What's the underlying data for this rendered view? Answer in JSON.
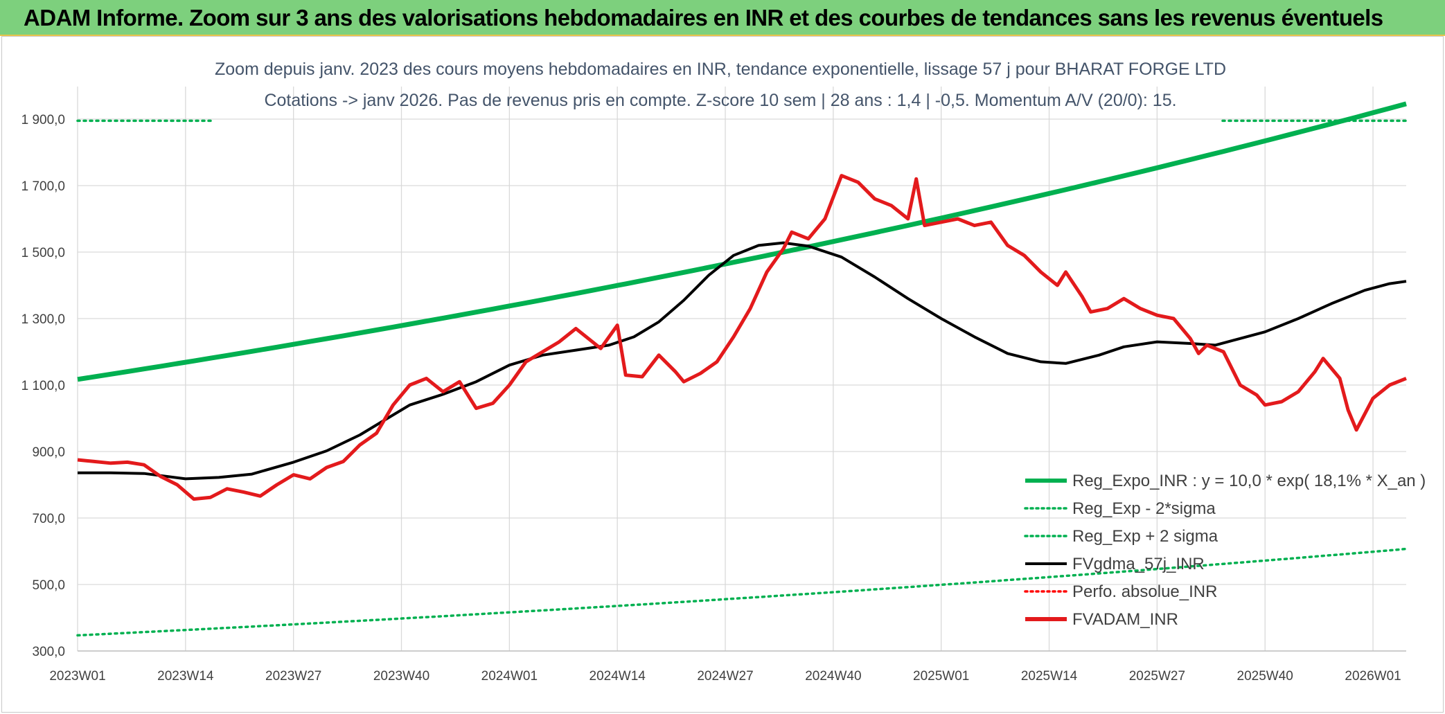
{
  "banner": {
    "title": "ADAM Informe. Zoom sur 3 ans des valorisations hebdomadaires en INR et des courbes de tendances sans les revenus éventuels"
  },
  "colors": {
    "banner_bg": "#7dd07d",
    "green": "#00b050",
    "black": "#000000",
    "red": "#e31a1c",
    "dotted_red": "#ff0000"
  },
  "chart_data": {
    "type": "line",
    "title": "Zoom depuis janv. 2023 des cours moyens hebdomadaires en INR, tendance exponentielle, lissage 57 j pour BHARAT FORGE LTD",
    "subtitle": "Cotations -> janv 2026. Pas de revenus pris en compte. Z-score 10 sem | 28 ans : 1,4 | -0,5. Momentum A/V (20/0): 15.",
    "ylim": [
      300,
      1900
    ],
    "yticks": [
      "300,0",
      "500,0",
      "700,0",
      "900,0",
      "1 100,0",
      "1 300,0",
      "1 500,0",
      "1 700,0",
      "1 900,0"
    ],
    "ytick_values": [
      300,
      500,
      700,
      900,
      1100,
      1300,
      1500,
      1700,
      1900
    ],
    "xticks": [
      "2023W01",
      "2023W14",
      "2023W27",
      "2023W40",
      "2024W01",
      "2024W14",
      "2024W27",
      "2024W40",
      "2025W01",
      "2025W14",
      "2025W27",
      "2025W40",
      "2026W01"
    ],
    "xtick_weeks": [
      0,
      13,
      26,
      39,
      52,
      65,
      78,
      91,
      104,
      117,
      130,
      143,
      156
    ],
    "n_weeks": 160,
    "grid": true,
    "legend_position": "bottom-right",
    "legend": [
      {
        "label": "Reg_Expo_INR : y = 10,0 * exp( 18,1% *  X_an )",
        "color": "#00b050",
        "style": "solid-thick"
      },
      {
        "label": "Reg_Exp - 2*sigma",
        "color": "#00b050",
        "style": "dotted"
      },
      {
        "label": "Reg_Exp + 2 sigma",
        "color": "#00b050",
        "style": "dotted"
      },
      {
        "label": "FVgdma_57j_INR",
        "color": "#000000",
        "style": "solid"
      },
      {
        "label": "Perfo. absolue_INR",
        "color": "#ff0000",
        "style": "dotted"
      },
      {
        "label": "FVADAM_INR",
        "color": "#e31a1c",
        "style": "solid-thick"
      }
    ],
    "series": [
      {
        "name": "Reg_Expo_INR",
        "start": 1117,
        "end": 1946
      },
      {
        "name": "Reg_Exp - 2*sigma",
        "start": 347,
        "end": 607
      },
      {
        "name": "Reg_Exp + 2 sigma",
        "start": 1895,
        "end": 1895,
        "note_visible_segments": true
      },
      {
        "name": "FVgdma_57j_INR",
        "points": [
          [
            0,
            836
          ],
          [
            4,
            836
          ],
          [
            8,
            834
          ],
          [
            13,
            818
          ],
          [
            17,
            822
          ],
          [
            21,
            832
          ],
          [
            26,
            868
          ],
          [
            30,
            902
          ],
          [
            34,
            950
          ],
          [
            37,
            995
          ],
          [
            40,
            1040
          ],
          [
            44,
            1072
          ],
          [
            48,
            1110
          ],
          [
            52,
            1160
          ],
          [
            56,
            1190
          ],
          [
            60,
            1205
          ],
          [
            64,
            1220
          ],
          [
            67,
            1245
          ],
          [
            70,
            1290
          ],
          [
            73,
            1355
          ],
          [
            76,
            1430
          ],
          [
            79,
            1490
          ],
          [
            82,
            1520
          ],
          [
            85,
            1528
          ],
          [
            88,
            1518
          ],
          [
            92,
            1485
          ],
          [
            96,
            1425
          ],
          [
            100,
            1360
          ],
          [
            104,
            1300
          ],
          [
            108,
            1245
          ],
          [
            112,
            1195
          ],
          [
            116,
            1170
          ],
          [
            119,
            1165
          ],
          [
            123,
            1190
          ],
          [
            126,
            1215
          ],
          [
            130,
            1230
          ],
          [
            134,
            1225
          ],
          [
            137,
            1220
          ],
          [
            140,
            1240
          ],
          [
            143,
            1260
          ],
          [
            147,
            1300
          ],
          [
            151,
            1345
          ],
          [
            155,
            1385
          ],
          [
            158,
            1405
          ],
          [
            160,
            1412
          ]
        ]
      },
      {
        "name": "FVADAM_INR",
        "points": [
          [
            0,
            875
          ],
          [
            2,
            870
          ],
          [
            4,
            865
          ],
          [
            6,
            868
          ],
          [
            8,
            860
          ],
          [
            10,
            825
          ],
          [
            12,
            800
          ],
          [
            14,
            757
          ],
          [
            16,
            762
          ],
          [
            18,
            788
          ],
          [
            20,
            778
          ],
          [
            22,
            766
          ],
          [
            24,
            800
          ],
          [
            26,
            830
          ],
          [
            28,
            818
          ],
          [
            30,
            852
          ],
          [
            32,
            870
          ],
          [
            34,
            920
          ],
          [
            36,
            955
          ],
          [
            38,
            1040
          ],
          [
            40,
            1100
          ],
          [
            42,
            1120
          ],
          [
            44,
            1080
          ],
          [
            46,
            1110
          ],
          [
            48,
            1030
          ],
          [
            50,
            1045
          ],
          [
            52,
            1100
          ],
          [
            54,
            1170
          ],
          [
            56,
            1200
          ],
          [
            58,
            1230
          ],
          [
            60,
            1270
          ],
          [
            62,
            1230
          ],
          [
            63,
            1210
          ],
          [
            65,
            1280
          ],
          [
            66,
            1130
          ],
          [
            68,
            1125
          ],
          [
            70,
            1190
          ],
          [
            72,
            1140
          ],
          [
            73,
            1110
          ],
          [
            75,
            1135
          ],
          [
            77,
            1170
          ],
          [
            79,
            1245
          ],
          [
            81,
            1330
          ],
          [
            83,
            1440
          ],
          [
            85,
            1510
          ],
          [
            86,
            1560
          ],
          [
            88,
            1540
          ],
          [
            90,
            1600
          ],
          [
            92,
            1730
          ],
          [
            94,
            1710
          ],
          [
            96,
            1660
          ],
          [
            98,
            1640
          ],
          [
            100,
            1600
          ],
          [
            101,
            1720
          ],
          [
            102,
            1580
          ],
          [
            104,
            1590
          ],
          [
            106,
            1600
          ],
          [
            108,
            1580
          ],
          [
            110,
            1590
          ],
          [
            112,
            1520
          ],
          [
            114,
            1490
          ],
          [
            116,
            1440
          ],
          [
            118,
            1400
          ],
          [
            119,
            1440
          ],
          [
            121,
            1365
          ],
          [
            122,
            1320
          ],
          [
            124,
            1330
          ],
          [
            126,
            1360
          ],
          [
            128,
            1330
          ],
          [
            130,
            1310
          ],
          [
            132,
            1300
          ],
          [
            134,
            1240
          ],
          [
            135,
            1195
          ],
          [
            136,
            1220
          ],
          [
            138,
            1200
          ],
          [
            140,
            1100
          ],
          [
            142,
            1070
          ],
          [
            143,
            1040
          ],
          [
            145,
            1050
          ],
          [
            147,
            1080
          ],
          [
            149,
            1140
          ],
          [
            150,
            1180
          ],
          [
            152,
            1120
          ],
          [
            153,
            1025
          ],
          [
            154,
            965
          ],
          [
            156,
            1060
          ],
          [
            158,
            1100
          ],
          [
            160,
            1120
          ]
        ]
      }
    ]
  }
}
